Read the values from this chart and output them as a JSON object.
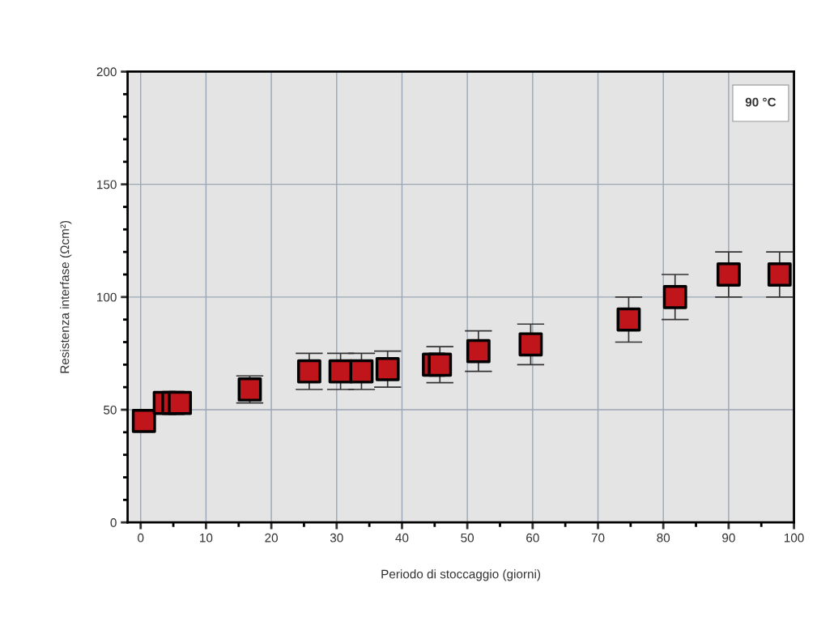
{
  "chart_data": {
    "type": "scatter",
    "xlabel": "Periodo di stoccaggio (giorni)",
    "ylabel": "Resistenza interfase (Ωcm²)",
    "x": [
      0.5,
      3.7,
      5,
      6,
      16.7,
      25.8,
      30.6,
      33.8,
      37.8,
      44.9,
      45.8,
      51.7,
      59.7,
      74.7,
      81.8,
      90,
      97.8
    ],
    "values": [
      45,
      53,
      53,
      53,
      59,
      67,
      67,
      67,
      68,
      70,
      70,
      76,
      79,
      90,
      100,
      110,
      110
    ],
    "errors": [
      null,
      null,
      null,
      null,
      6,
      8,
      8,
      8,
      8,
      null,
      8,
      9,
      9,
      10,
      10,
      10,
      10
    ],
    "color": "#c0161b",
    "marker": "square",
    "xlim": [
      -2,
      100
    ],
    "xticks": [
      0,
      10,
      20,
      30,
      40,
      50,
      60,
      70,
      80,
      90,
      100
    ],
    "ylim": [
      0,
      200
    ],
    "yticks": [
      0,
      50,
      100,
      150,
      200
    ],
    "grid": true,
    "annotations": [
      "90 °C"
    ]
  }
}
